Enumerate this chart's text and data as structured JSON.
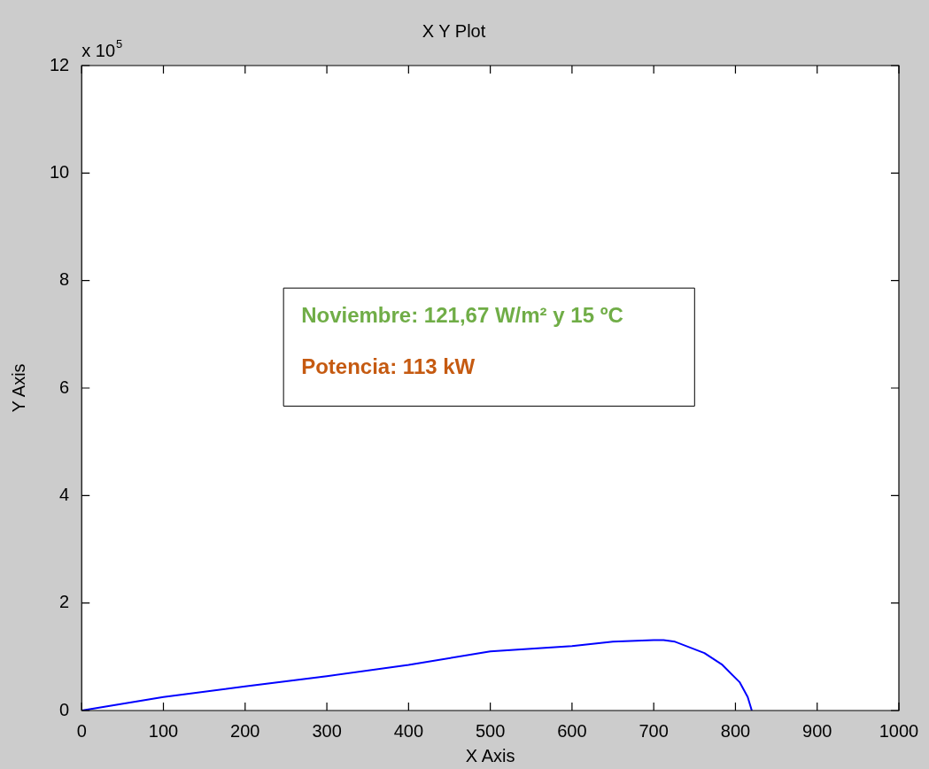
{
  "chart_data": {
    "type": "line",
    "title": "X Y Plot",
    "xlabel": "X Axis",
    "ylabel": "Y Axis",
    "x": [
      0,
      100,
      200,
      300,
      400,
      500,
      600,
      650,
      700,
      712,
      726,
      762,
      784,
      799,
      805,
      815,
      820
    ],
    "series": [
      {
        "color": "#0000ff",
        "values": [
          0,
          0.25,
          0.45,
          0.64,
          0.85,
          1.1,
          1.2,
          1.28,
          1.31,
          1.31,
          1.28,
          1.07,
          0.85,
          0.62,
          0.53,
          0.25,
          0
        ]
      }
    ],
    "xlim": [
      0,
      1000
    ],
    "xticks": [
      0,
      100,
      200,
      300,
      400,
      500,
      600,
      700,
      800,
      900,
      1000
    ],
    "ylim": [
      0,
      12
    ],
    "yticks": [
      0,
      2,
      4,
      6,
      8,
      10,
      12
    ],
    "marker": "none",
    "annotations": [
      "x 10$^{5}$",
      "Noviembre: 121,67 W/m² y 15 ºC",
      "Potencia: 113 kW"
    ]
  }
}
